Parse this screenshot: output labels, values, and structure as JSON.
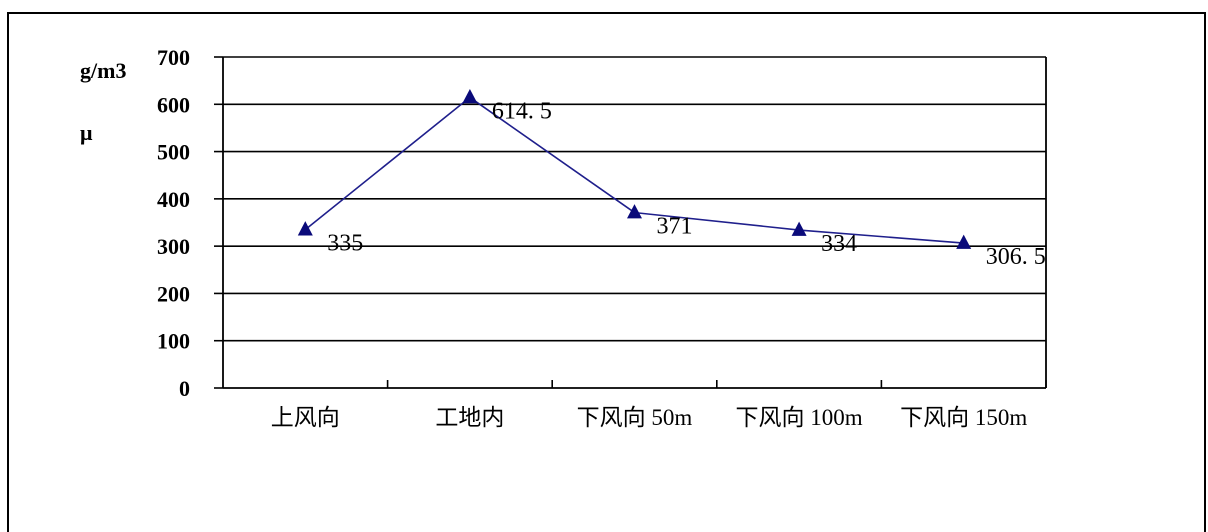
{
  "chart_data": {
    "type": "line",
    "categories": [
      "上风向",
      "工地内",
      "下风向 50m",
      "下风向 100m",
      "下风向 150m"
    ],
    "series": [
      {
        "values": [
          335,
          614.5,
          371,
          334,
          306.5
        ]
      }
    ],
    "data_labels": [
      "335",
      "614. 5",
      "371",
      "334",
      "306. 5"
    ],
    "ylabel_top": "g/m3",
    "ylabel_second": "μ",
    "yticks": [
      "0",
      "100",
      "200",
      "300",
      "400",
      "500",
      "600",
      "700"
    ],
    "ylim": [
      0,
      700
    ],
    "grid": true,
    "legend": "none",
    "colors": {
      "line": "#1f1f8c",
      "marker": "#0a0a7a",
      "grid": "#000000"
    }
  }
}
